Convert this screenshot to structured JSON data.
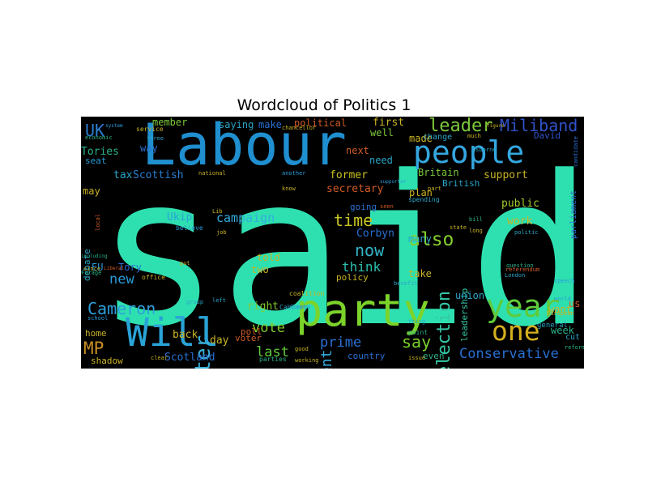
{
  "chart_data": {
    "type": "wordcloud",
    "title": "Wordcloud of Politics 1",
    "words": [
      {
        "text": "said",
        "color": "#2ee0b0"
      },
      {
        "text": "Labour",
        "color": "#1f8fd0"
      },
      {
        "text": "party",
        "color": "#7cd32a"
      },
      {
        "text": "Will",
        "color": "#2aa3d6"
      },
      {
        "text": "people",
        "color": "#35a7e0"
      },
      {
        "text": "year",
        "color": "#5fcb3a"
      },
      {
        "text": "one",
        "color": "#d4b01e"
      },
      {
        "text": "minister",
        "color": "#3ab0d8"
      },
      {
        "text": "Miliband",
        "color": "#3052c8"
      },
      {
        "text": "leader",
        "color": "#7ec93a"
      },
      {
        "text": "election",
        "color": "#35c9a6"
      },
      {
        "text": "government",
        "color": "#35aee0"
      },
      {
        "text": "Cameron",
        "color": "#2ea0db"
      },
      {
        "text": "Conservative",
        "color": "#2a6fd2"
      },
      {
        "text": "also",
        "color": "#86cf2c"
      },
      {
        "text": "say",
        "color": "#7bd12b"
      },
      {
        "text": "UK",
        "color": "#2a7fd3"
      },
      {
        "text": "MP",
        "color": "#c98f24"
      },
      {
        "text": "time",
        "color": "#c8c422"
      },
      {
        "text": "now",
        "color": "#34b5c9"
      },
      {
        "text": "vote",
        "color": "#80c92d"
      },
      {
        "text": "new",
        "color": "#2a9bd8"
      },
      {
        "text": "prime",
        "color": "#2a6fd2"
      },
      {
        "text": "last",
        "color": "#5fc93a"
      },
      {
        "text": "think",
        "color": "#2bbfae"
      },
      {
        "text": "campaign",
        "color": "#35aee0"
      },
      {
        "text": "Tories",
        "color": "#2bb08a"
      },
      {
        "text": "Scottish",
        "color": "#2a7fd3"
      },
      {
        "text": "tax",
        "color": "#2aa6c8"
      },
      {
        "text": "former",
        "color": "#c9c222"
      },
      {
        "text": "secretary",
        "color": "#d05a26"
      },
      {
        "text": "support",
        "color": "#c9b324"
      },
      {
        "text": "public",
        "color": "#a2c92a"
      },
      {
        "text": "work",
        "color": "#c9b324"
      },
      {
        "text": "Ukip",
        "color": "#2aa3d6"
      },
      {
        "text": "Corbyn",
        "color": "#2a6fd2"
      },
      {
        "text": "leadership",
        "color": "#35c9a6"
      },
      {
        "text": "union",
        "color": "#2aa6c8"
      },
      {
        "text": "Scotland",
        "color": "#2a6fd2"
      },
      {
        "text": "right",
        "color": "#80c92d"
      },
      {
        "text": "back",
        "color": "#c9b324"
      },
      {
        "text": "day",
        "color": "#c9b324"
      },
      {
        "text": "make",
        "color": "#2a6fd2"
      },
      {
        "text": "member",
        "color": "#7bc93a"
      },
      {
        "text": "saying",
        "color": "#2aa6c8"
      },
      {
        "text": "political",
        "color": "#d05a26"
      },
      {
        "text": "first",
        "color": "#c9b324"
      },
      {
        "text": "made",
        "color": "#c9b324"
      },
      {
        "text": "need",
        "color": "#2aa6c8"
      },
      {
        "text": "well",
        "color": "#7bc93a"
      },
      {
        "text": "next",
        "color": "#d05a26"
      },
      {
        "text": "Britain",
        "color": "#7bc93a"
      },
      {
        "text": "British",
        "color": "#2aa6c8"
      },
      {
        "text": "plan",
        "color": "#c9b324"
      },
      {
        "text": "going",
        "color": "#2a6fd2"
      },
      {
        "text": "many",
        "color": "#2aa6c8"
      },
      {
        "text": "take",
        "color": "#c9b324"
      },
      {
        "text": "want",
        "color": "#c9b324"
      },
      {
        "text": "week",
        "color": "#2bb08a"
      },
      {
        "text": "told",
        "color": "#c9b324"
      },
      {
        "text": "two",
        "color": "#c9b324"
      },
      {
        "text": "policy",
        "color": "#c9b324"
      },
      {
        "text": "EU",
        "color": "#2a9bd8"
      },
      {
        "text": "Tory",
        "color": "#2a6fd2"
      },
      {
        "text": "way",
        "color": "#2a6fd2"
      },
      {
        "text": "may",
        "color": "#c9b324"
      },
      {
        "text": "debate",
        "color": "#2aa6c8"
      },
      {
        "text": "home",
        "color": "#c9b324"
      },
      {
        "text": "shadow",
        "color": "#c9b324"
      },
      {
        "text": "poll",
        "color": "#d05a26"
      },
      {
        "text": "voter",
        "color": "#d05a26"
      },
      {
        "text": "country",
        "color": "#2a6fd2"
      },
      {
        "text": "even",
        "color": "#2bb08a"
      },
      {
        "text": "general",
        "color": "#2aa6c8"
      },
      {
        "text": "cut",
        "color": "#2aa6c8"
      },
      {
        "text": "us",
        "color": "#d05a26"
      },
      {
        "text": "parliament",
        "color": "#2a6fd2"
      },
      {
        "text": "David",
        "color": "#3052c8"
      },
      {
        "text": "change",
        "color": "#2aa6c8"
      },
      {
        "text": "seat",
        "color": "#2a9bd8"
      },
      {
        "text": "economic",
        "color": "#2bb08a"
      },
      {
        "text": "service",
        "color": "#c9b324"
      },
      {
        "text": "system",
        "color": "#2a9bd8"
      },
      {
        "text": "three",
        "color": "#2aa6c8"
      },
      {
        "text": "national",
        "color": "#c9b324"
      },
      {
        "text": "another",
        "color": "#2a9bd8"
      },
      {
        "text": "spending",
        "color": "#2aa6c8"
      },
      {
        "text": "candidate",
        "color": "#2a6fd2"
      },
      {
        "text": "figure",
        "color": "#c9b324"
      },
      {
        "text": "Osborne",
        "color": "#2aa6c8"
      },
      {
        "text": "London",
        "color": "#2aa6c8"
      },
      {
        "text": "coalition",
        "color": "#c9b324"
      },
      {
        "text": "Cabinet",
        "color": "#2aa6c8"
      },
      {
        "text": "office",
        "color": "#c9b324"
      },
      {
        "text": "Farage",
        "color": "#2bb08a"
      },
      {
        "text": "local",
        "color": "#d05a26"
      },
      {
        "text": "including",
        "color": "#2bb08a"
      },
      {
        "text": "since",
        "color": "#c9b324"
      },
      {
        "text": "Liberal",
        "color": "#d05a26"
      },
      {
        "text": "school",
        "color": "#2a9bd8"
      },
      {
        "text": "question",
        "color": "#2bb08a"
      },
      {
        "text": "referendum",
        "color": "#d05a26"
      },
      {
        "text": "politic",
        "color": "#2aa6c8"
      },
      {
        "text": "job",
        "color": "#c9b324"
      },
      {
        "text": "believe",
        "color": "#2a9bd8"
      },
      {
        "text": "put",
        "color": "#c9b324"
      },
      {
        "text": "point",
        "color": "#2bb08a"
      },
      {
        "text": "thing",
        "color": "#2aa6c8"
      },
      {
        "text": "issue",
        "color": "#c9b324"
      },
      {
        "text": "working",
        "color": "#c9b324"
      },
      {
        "text": "parties",
        "color": "#2bb08a"
      },
      {
        "text": "clear",
        "color": "#c9b324"
      },
      {
        "text": "group",
        "color": "#2aa6c8"
      },
      {
        "text": "Lib",
        "color": "#c9b324"
      },
      {
        "text": "left",
        "color": "#2aa6c8"
      },
      {
        "text": "Common",
        "color": "#2a9bd8"
      },
      {
        "text": "good",
        "color": "#c9b324"
      },
      {
        "text": "state",
        "color": "#c9b324"
      },
      {
        "text": "long",
        "color": "#c9b324"
      },
      {
        "text": "bill",
        "color": "#2bb08a"
      },
      {
        "text": "European",
        "color": "#c9b324"
      },
      {
        "text": "speech",
        "color": "#2a9bd8"
      },
      {
        "text": "world",
        "color": "#2a9bd8"
      },
      {
        "text": "reform",
        "color": "#2bb08a"
      },
      {
        "text": "benefit",
        "color": "#2aa6c8"
      },
      {
        "text": "chancellor",
        "color": "#c9b324"
      },
      {
        "text": "know",
        "color": "#c9b324"
      },
      {
        "text": "part",
        "color": "#c9b324"
      },
      {
        "text": "much",
        "color": "#c9b324"
      },
      {
        "text": "supporter",
        "color": "#2a9bd8"
      },
      {
        "text": "seen",
        "color": "#d05a26"
      }
    ]
  }
}
